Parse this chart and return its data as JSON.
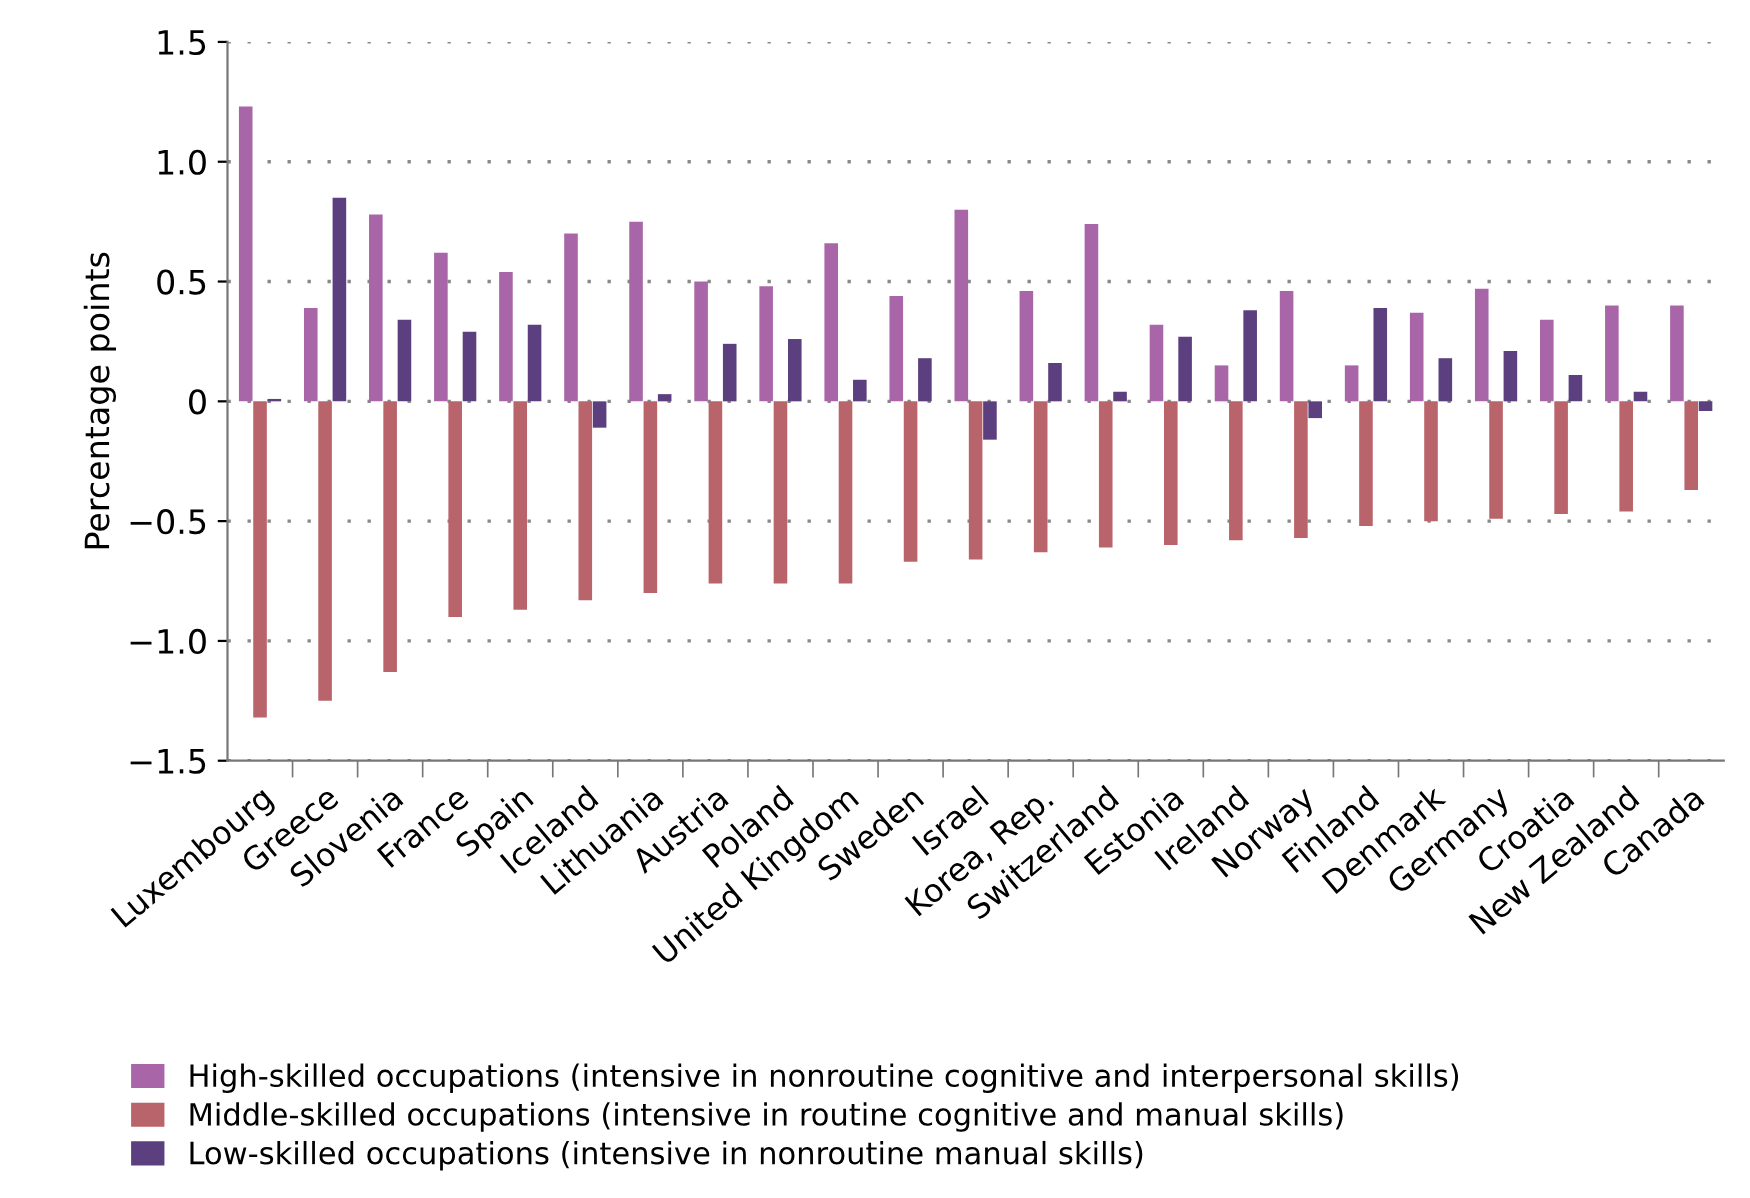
{
  "chart_data": {
    "type": "bar",
    "ylabel": "Percentage points",
    "categories": [
      "Luxembourg",
      "Greece",
      "Slovenia",
      "France",
      "Spain",
      "Iceland",
      "Lithuania",
      "Austria",
      "Poland",
      "United Kingdom",
      "Sweden",
      "Israel",
      "Korea, Rep.",
      "Switzerland",
      "Estonia",
      "Ireland",
      "Norway",
      "Finland",
      "Denmark",
      "Germany",
      "Croatia",
      "New Zealand",
      "Canada"
    ],
    "series": [
      {
        "name": "High-skilled occupations (intensive in nonroutine cognitive and interpersonal skills)",
        "color": "#a866a8",
        "values": [
          1.23,
          0.39,
          0.78,
          0.62,
          0.54,
          0.7,
          0.75,
          0.5,
          0.48,
          0.66,
          0.44,
          0.8,
          0.46,
          0.74,
          0.32,
          0.15,
          0.46,
          0.15,
          0.37,
          0.47,
          0.34,
          0.4,
          0.4
        ]
      },
      {
        "name": "Middle-skilled occupations (intensive in routine cognitive and manual skills)",
        "color": "#b9646a",
        "values": [
          -1.32,
          -1.25,
          -1.13,
          -0.9,
          -0.87,
          -0.83,
          -0.8,
          -0.76,
          -0.76,
          -0.76,
          -0.67,
          -0.66,
          -0.63,
          -0.61,
          -0.6,
          -0.58,
          -0.57,
          -0.52,
          -0.5,
          -0.49,
          -0.47,
          -0.46,
          -0.37
        ]
      },
      {
        "name": "Low-skilled occupations (intensive in nonroutine manual skills)",
        "color": "#5c3f7e",
        "values": [
          0.01,
          0.85,
          0.34,
          0.29,
          0.32,
          -0.11,
          0.03,
          0.24,
          0.26,
          0.09,
          0.18,
          -0.16,
          0.16,
          0.04,
          0.27,
          0.38,
          -0.07,
          0.39,
          0.18,
          0.21,
          0.11,
          0.04,
          -0.04
        ]
      }
    ],
    "ylim": [
      -1.5,
      1.5
    ],
    "yticks": [
      {
        "value": -1.5,
        "label": "−1.5"
      },
      {
        "value": -1.0,
        "label": "−1.0"
      },
      {
        "value": -0.5,
        "label": "−0.5"
      },
      {
        "value": 0,
        "label": "0"
      },
      {
        "value": 0.5,
        "label": "0.5"
      },
      {
        "value": 1.0,
        "label": "1.0"
      },
      {
        "value": 1.5,
        "label": "1.5"
      }
    ],
    "grid": "y",
    "legend": "bottom"
  }
}
